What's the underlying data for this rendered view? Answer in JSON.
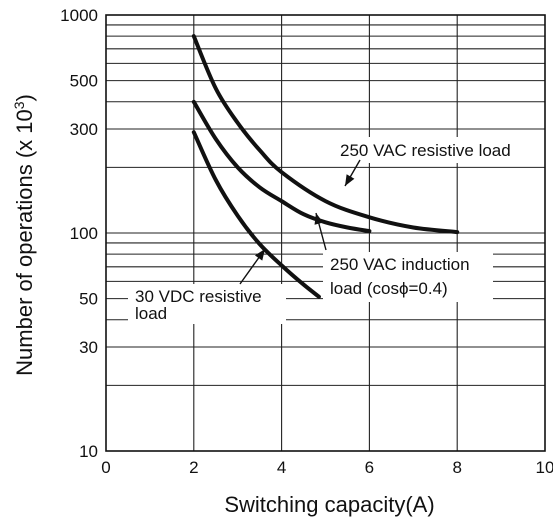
{
  "chart_data": {
    "type": "line",
    "xlabel": "Switching capacity(A)",
    "ylabel": "Number of operations (x 10³)",
    "ylabel_parts": {
      "base": "Number of operations (x 10",
      "exp": "3",
      "close": ")"
    },
    "xlim": [
      0,
      10
    ],
    "ylim": [
      10,
      1000
    ],
    "y_scale": "log",
    "grid": true,
    "x_ticks": [
      0,
      2,
      4,
      6,
      8,
      10
    ],
    "x_tick_labels": [
      "0",
      "2",
      "4",
      "6",
      "8",
      "10"
    ],
    "y_ticks": [
      10,
      30,
      50,
      100,
      300,
      500,
      1000
    ],
    "y_tick_labels": [
      "10",
      "30",
      "50",
      "100",
      "300",
      "500",
      "1000"
    ],
    "series": [
      {
        "x": [
          2,
          2.5,
          3,
          3.5,
          4,
          5,
          6,
          7,
          8
        ],
        "y": [
          800,
          460,
          320,
          240,
          190,
          140,
          118,
          106,
          101
        ]
      },
      {
        "x": [
          2,
          2.5,
          3,
          3.5,
          4,
          4.5,
          5,
          5.5,
          6
        ],
        "y": [
          400,
          270,
          200,
          162,
          140,
          122,
          112,
          106,
          102
        ]
      },
      {
        "x": [
          2,
          2.5,
          3,
          3.5,
          4,
          4.5,
          4.85
        ],
        "y": [
          290,
          175,
          120,
          89,
          71,
          58,
          51
        ]
      }
    ],
    "annotations": [
      {
        "lines": [
          "250 VAC resistive load"
        ]
      },
      {
        "lines": [
          "250 VAC induction",
          "load (cosϕ=0.4)"
        ]
      },
      {
        "lines": [
          "30 VDC resistive",
          "load"
        ]
      }
    ]
  }
}
